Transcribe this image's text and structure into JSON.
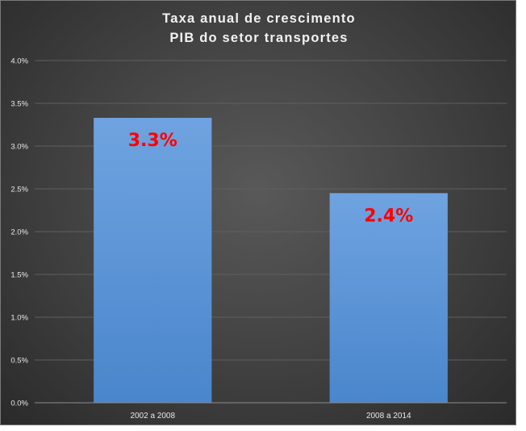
{
  "chart_data": {
    "type": "bar",
    "title_lines": [
      "Taxa anual de crescimento",
      "PIB do setor transportes"
    ],
    "categories": [
      "2002 a 2008",
      "2008 a 2014"
    ],
    "values": [
      3.33,
      2.45
    ],
    "data_labels": [
      "3.3%",
      "2.4%"
    ],
    "yticks": [
      "0.0%",
      "0.5%",
      "1.0%",
      "1.5%",
      "2.0%",
      "2.5%",
      "3.0%",
      "3.5%",
      "4.0%"
    ],
    "ylim": [
      0,
      4
    ],
    "grid": true,
    "legend": "none",
    "colors": {
      "bar_top": "#6fa3e0",
      "bar_bottom": "#4a86cc",
      "data_label": "#ff0000"
    }
  }
}
